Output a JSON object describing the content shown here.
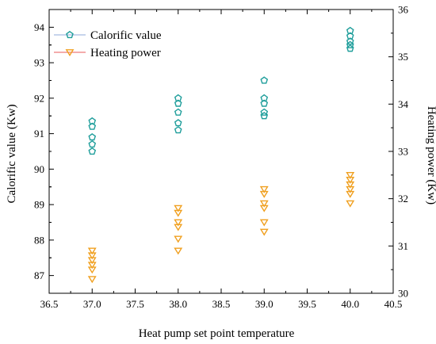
{
  "chart_data": {
    "type": "scatter",
    "xlabel": "Heat pump set point temperature",
    "ylabel_left": "Calorific value (Kw)",
    "ylabel_right": "Heating power (Kw)",
    "xlim": [
      36.5,
      40.5
    ],
    "ylim_left": [
      86.5,
      94.5
    ],
    "ylim_right": [
      30,
      36
    ],
    "x_ticks": [
      "36.5",
      "37.0",
      "37.5",
      "38.0",
      "38.5",
      "39.0",
      "39.5",
      "40.0",
      "40.5"
    ],
    "y_left_ticks": [
      "87",
      "88",
      "89",
      "90",
      "91",
      "92",
      "93",
      "94"
    ],
    "y_right_ticks": [
      "30",
      "31",
      "32",
      "33",
      "34",
      "35",
      "36"
    ],
    "legend_position": "top-left",
    "grid": false,
    "series": [
      {
        "name": "Calorific value",
        "axis": "left",
        "marker": "pentagon",
        "color": "#1f9e9b",
        "points": [
          [
            37.0,
            91.35
          ],
          [
            37.0,
            91.2
          ],
          [
            37.0,
            90.9
          ],
          [
            37.0,
            90.7
          ],
          [
            37.0,
            90.5
          ],
          [
            38.0,
            92.0
          ],
          [
            38.0,
            91.85
          ],
          [
            38.0,
            91.6
          ],
          [
            38.0,
            91.3
          ],
          [
            38.0,
            91.1
          ],
          [
            39.0,
            92.5
          ],
          [
            39.0,
            92.0
          ],
          [
            39.0,
            91.85
          ],
          [
            39.0,
            91.6
          ],
          [
            39.0,
            91.5
          ],
          [
            40.0,
            93.9
          ],
          [
            40.0,
            93.75
          ],
          [
            40.0,
            93.6
          ],
          [
            40.0,
            93.5
          ],
          [
            40.0,
            93.4
          ]
        ]
      },
      {
        "name": "Heating power",
        "axis": "right",
        "marker": "triangle-down",
        "color": "#f0a020",
        "points": [
          [
            37.0,
            30.9
          ],
          [
            37.0,
            30.8
          ],
          [
            37.0,
            30.7
          ],
          [
            37.0,
            30.6
          ],
          [
            37.0,
            30.5
          ],
          [
            37.0,
            30.3
          ],
          [
            38.0,
            31.8
          ],
          [
            38.0,
            31.7
          ],
          [
            38.0,
            31.5
          ],
          [
            38.0,
            31.4
          ],
          [
            38.0,
            31.15
          ],
          [
            38.0,
            30.9
          ],
          [
            39.0,
            32.2
          ],
          [
            39.0,
            32.1
          ],
          [
            39.0,
            31.9
          ],
          [
            39.0,
            31.8
          ],
          [
            39.0,
            31.5
          ],
          [
            39.0,
            31.3
          ],
          [
            40.0,
            32.5
          ],
          [
            40.0,
            32.4
          ],
          [
            40.0,
            32.3
          ],
          [
            40.0,
            32.2
          ],
          [
            40.0,
            32.1
          ],
          [
            40.0,
            31.9
          ]
        ]
      }
    ]
  }
}
